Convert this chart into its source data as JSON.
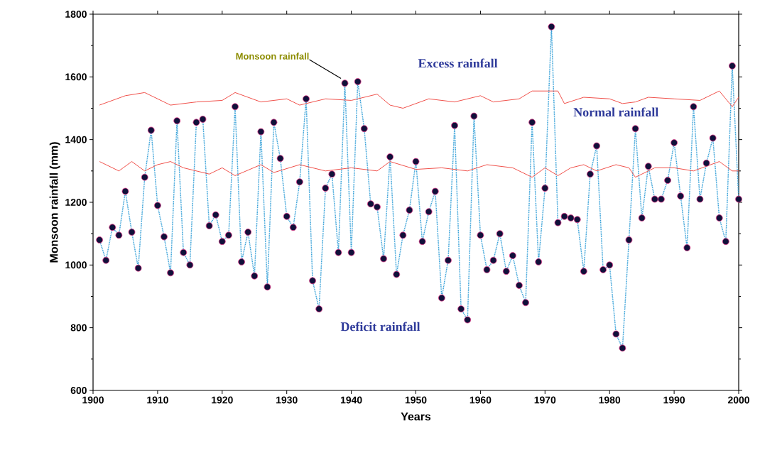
{
  "chart_data": {
    "type": "line",
    "xlabel": "Years",
    "ylabel": "Monsoon rainfall (mm)",
    "xlim": [
      1900,
      2000
    ],
    "ylim": [
      600,
      1800
    ],
    "xticks": [
      1900,
      1910,
      1920,
      1930,
      1940,
      1950,
      1960,
      1970,
      1980,
      1990,
      2000
    ],
    "yticks": [
      600,
      800,
      1000,
      1200,
      1400,
      1600,
      1800
    ],
    "series": [
      {
        "color": "#3ba3d9",
        "marker": "circle",
        "line_style": "dotted",
        "x": [
          1901,
          1902,
          1903,
          1904,
          1905,
          1906,
          1907,
          1908,
          1909,
          1910,
          1911,
          1912,
          1913,
          1914,
          1915,
          1916,
          1917,
          1918,
          1919,
          1920,
          1921,
          1922,
          1923,
          1924,
          1925,
          1926,
          1927,
          1928,
          1929,
          1930,
          1931,
          1932,
          1933,
          1934,
          1935,
          1936,
          1937,
          1938,
          1939,
          1940,
          1941,
          1942,
          1943,
          1944,
          1945,
          1946,
          1947,
          1948,
          1949,
          1950,
          1951,
          1952,
          1953,
          1954,
          1955,
          1956,
          1957,
          1958,
          1959,
          1960,
          1961,
          1962,
          1963,
          1964,
          1965,
          1966,
          1967,
          1968,
          1969,
          1970,
          1971,
          1972,
          1973,
          1974,
          1975,
          1976,
          1977,
          1978,
          1979,
          1980,
          1981,
          1982,
          1983,
          1984,
          1985,
          1986,
          1987,
          1988,
          1989,
          1990,
          1991,
          1992,
          1993,
          1994,
          1995,
          1996,
          1997,
          1998,
          1999,
          2000
        ],
        "values": [
          1080,
          1015,
          1120,
          1095,
          1235,
          1105,
          990,
          1280,
          1430,
          1190,
          1090,
          975,
          1460,
          1040,
          1000,
          1455,
          1465,
          1125,
          1160,
          1075,
          1095,
          1505,
          1010,
          1105,
          965,
          1425,
          930,
          1455,
          1340,
          1155,
          1120,
          1265,
          1530,
          950,
          860,
          1245,
          1290,
          1040,
          1580,
          1040,
          1585,
          1435,
          1195,
          1185,
          1020,
          1345,
          970,
          1095,
          1175,
          1330,
          1075,
          1170,
          1235,
          895,
          1015,
          1445,
          860,
          825,
          1475,
          1095,
          985,
          1015,
          1100,
          980,
          1030,
          935,
          880,
          1455,
          1010,
          1245,
          1760,
          1135,
          1155,
          1150,
          1145,
          980,
          1290,
          1380,
          985,
          1000,
          780,
          735,
          1080,
          1435,
          1150,
          1315,
          1210,
          1210,
          1270,
          1390,
          1220,
          1055,
          1505,
          1210,
          1325,
          1405,
          1150,
          1075,
          1635,
          1210
        ]
      },
      {
        "color": "#f0504a",
        "marker": "none",
        "line_style": "solid",
        "x": [
          1901,
          1905,
          1908,
          1912,
          1916,
          1920,
          1922,
          1926,
          1930,
          1932,
          1936,
          1940,
          1944,
          1946,
          1948,
          1952,
          1956,
          1960,
          1962,
          1966,
          1968,
          1972,
          1973,
          1976,
          1980,
          1982,
          1984,
          1986,
          1990,
          1994,
          1997,
          1999,
          2000
        ],
        "values": [
          1510,
          1540,
          1550,
          1510,
          1520,
          1525,
          1550,
          1520,
          1530,
          1510,
          1530,
          1525,
          1545,
          1510,
          1500,
          1530,
          1520,
          1540,
          1520,
          1530,
          1555,
          1555,
          1515,
          1535,
          1530,
          1515,
          1520,
          1535,
          1530,
          1525,
          1555,
          1505,
          1535
        ]
      },
      {
        "color": "#f0504a",
        "marker": "none",
        "line_style": "solid",
        "x": [
          1901,
          1904,
          1906,
          1908,
          1910,
          1912,
          1914,
          1918,
          1920,
          1922,
          1926,
          1928,
          1932,
          1936,
          1940,
          1944,
          1946,
          1950,
          1954,
          1958,
          1961,
          1965,
          1968,
          1970,
          1972,
          1974,
          1976,
          1978,
          1981,
          1983,
          1984,
          1987,
          1990,
          1993,
          1997,
          1999,
          2000
        ],
        "values": [
          1330,
          1300,
          1330,
          1300,
          1320,
          1330,
          1310,
          1290,
          1310,
          1285,
          1320,
          1295,
          1320,
          1300,
          1310,
          1300,
          1330,
          1305,
          1310,
          1300,
          1320,
          1310,
          1280,
          1310,
          1285,
          1310,
          1320,
          1300,
          1320,
          1310,
          1280,
          1310,
          1310,
          1300,
          1330,
          1300,
          1300
        ]
      }
    ],
    "annotations": [
      {
        "text": "Monsoon rainfall",
        "x": 1939,
        "y": 1580
      },
      "Excess rainfall",
      "Normal rainfall",
      "Deficit rainfall"
    ]
  }
}
